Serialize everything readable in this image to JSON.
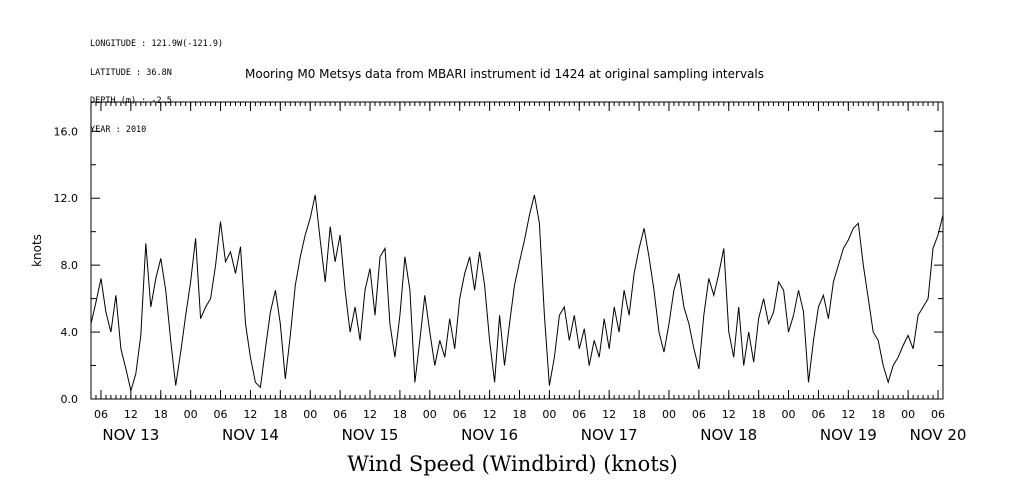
{
  "chart_data": {
    "type": "line",
    "title": "Wind Speed (Windbird) (knots)",
    "subtitle": "Mooring M0 Metsys data from MBARI instrument id 1424 at original sampling intervals",
    "header_info": [
      "LONGITUDE : 121.9W(-121.9)",
      "LATITUDE : 36.8N",
      "DEPTH (m) : -2.5",
      "YEAR : 2010"
    ],
    "ylabel": "knots",
    "xlabel": "",
    "ylim": [
      0,
      17.75
    ],
    "yticks": [
      0.0,
      4.0,
      8.0,
      12.0,
      16.0
    ],
    "ytick_labels": [
      "0.0",
      "4.0",
      "8.0",
      "12.0",
      "16.0"
    ],
    "x_start": "2010-11-13T04:00",
    "x_end": "2010-11-20T07:00",
    "xtick_hour_labels": [
      {
        "t": "2010-11-13T06:00",
        "label": "06"
      },
      {
        "t": "2010-11-13T12:00",
        "label": "12"
      },
      {
        "t": "2010-11-13T18:00",
        "label": "18"
      },
      {
        "t": "2010-11-14T00:00",
        "label": "00"
      },
      {
        "t": "2010-11-14T06:00",
        "label": "06"
      },
      {
        "t": "2010-11-14T12:00",
        "label": "12"
      },
      {
        "t": "2010-11-14T18:00",
        "label": "18"
      },
      {
        "t": "2010-11-15T00:00",
        "label": "00"
      },
      {
        "t": "2010-11-15T06:00",
        "label": "06"
      },
      {
        "t": "2010-11-15T12:00",
        "label": "12"
      },
      {
        "t": "2010-11-15T18:00",
        "label": "18"
      },
      {
        "t": "2010-11-16T00:00",
        "label": "00"
      },
      {
        "t": "2010-11-16T06:00",
        "label": "06"
      },
      {
        "t": "2010-11-16T12:00",
        "label": "12"
      },
      {
        "t": "2010-11-16T18:00",
        "label": "18"
      },
      {
        "t": "2010-11-17T00:00",
        "label": "00"
      },
      {
        "t": "2010-11-17T06:00",
        "label": "06"
      },
      {
        "t": "2010-11-17T12:00",
        "label": "12"
      },
      {
        "t": "2010-11-17T18:00",
        "label": "18"
      },
      {
        "t": "2010-11-18T00:00",
        "label": "00"
      },
      {
        "t": "2010-11-18T06:00",
        "label": "06"
      },
      {
        "t": "2010-11-18T12:00",
        "label": "12"
      },
      {
        "t": "2010-11-18T18:00",
        "label": "18"
      },
      {
        "t": "2010-11-19T00:00",
        "label": "00"
      },
      {
        "t": "2010-11-19T06:00",
        "label": "06"
      },
      {
        "t": "2010-11-19T12:00",
        "label": "12"
      },
      {
        "t": "2010-11-19T18:00",
        "label": "18"
      },
      {
        "t": "2010-11-20T00:00",
        "label": "00"
      },
      {
        "t": "2010-11-20T06:00",
        "label": "06"
      }
    ],
    "xtick_day_labels": [
      {
        "t": "2010-11-13T12:00",
        "label": "NOV 13"
      },
      {
        "t": "2010-11-14T12:00",
        "label": "NOV 14"
      },
      {
        "t": "2010-11-15T12:00",
        "label": "NOV 15"
      },
      {
        "t": "2010-11-16T12:00",
        "label": "NOV 16"
      },
      {
        "t": "2010-11-17T12:00",
        "label": "NOV 17"
      },
      {
        "t": "2010-11-18T12:00",
        "label": "NOV 18"
      },
      {
        "t": "2010-11-19T12:00",
        "label": "NOV 19"
      },
      {
        "t": "2010-11-20T06:00",
        "label": "NOV 20"
      }
    ],
    "grid": false,
    "series": [
      {
        "color": "#000000",
        "points": [
          [
            "2010-11-13T04:00",
            4.5
          ],
          [
            "2010-11-13T05:00",
            5.8
          ],
          [
            "2010-11-13T06:00",
            7.2
          ],
          [
            "2010-11-13T07:00",
            5.2
          ],
          [
            "2010-11-13T08:00",
            4.0
          ],
          [
            "2010-11-13T09:00",
            6.2
          ],
          [
            "2010-11-13T10:00",
            3.0
          ],
          [
            "2010-11-13T11:00",
            1.8
          ],
          [
            "2010-11-13T12:00",
            0.5
          ],
          [
            "2010-11-13T13:00",
            1.5
          ],
          [
            "2010-11-13T14:00",
            3.8
          ],
          [
            "2010-11-13T15:00",
            9.3
          ],
          [
            "2010-11-13T16:00",
            5.5
          ],
          [
            "2010-11-13T17:00",
            7.2
          ],
          [
            "2010-11-13T18:00",
            8.4
          ],
          [
            "2010-11-13T19:00",
            6.5
          ],
          [
            "2010-11-13T20:00",
            3.5
          ],
          [
            "2010-11-13T21:00",
            0.8
          ],
          [
            "2010-11-13T22:00",
            2.8
          ],
          [
            "2010-11-13T23:00",
            5.0
          ],
          [
            "2010-11-14T00:00",
            7.0
          ],
          [
            "2010-11-14T01:00",
            9.6
          ],
          [
            "2010-11-14T02:00",
            4.8
          ],
          [
            "2010-11-14T03:00",
            5.5
          ],
          [
            "2010-11-14T04:00",
            6.0
          ],
          [
            "2010-11-14T05:00",
            8.0
          ],
          [
            "2010-11-14T06:00",
            10.6
          ],
          [
            "2010-11-14T07:00",
            8.2
          ],
          [
            "2010-11-14T08:00",
            8.8
          ],
          [
            "2010-11-14T09:00",
            7.5
          ],
          [
            "2010-11-14T10:00",
            9.1
          ],
          [
            "2010-11-14T11:00",
            4.5
          ],
          [
            "2010-11-14T12:00",
            2.5
          ],
          [
            "2010-11-14T13:00",
            1.0
          ],
          [
            "2010-11-14T14:00",
            0.7
          ],
          [
            "2010-11-14T15:00",
            3.0
          ],
          [
            "2010-11-14T16:00",
            5.2
          ],
          [
            "2010-11-14T17:00",
            6.5
          ],
          [
            "2010-11-14T18:00",
            4.5
          ],
          [
            "2010-11-14T19:00",
            1.2
          ],
          [
            "2010-11-14T20:00",
            3.8
          ],
          [
            "2010-11-14T21:00",
            6.8
          ],
          [
            "2010-11-14T22:00",
            8.5
          ],
          [
            "2010-11-14T23:00",
            9.8
          ],
          [
            "2010-11-15T00:00",
            10.8
          ],
          [
            "2010-11-15T01:00",
            12.2
          ],
          [
            "2010-11-15T02:00",
            9.5
          ],
          [
            "2010-11-15T03:00",
            7.0
          ],
          [
            "2010-11-15T04:00",
            10.3
          ],
          [
            "2010-11-15T05:00",
            8.2
          ],
          [
            "2010-11-15T06:00",
            9.8
          ],
          [
            "2010-11-15T07:00",
            6.5
          ],
          [
            "2010-11-15T08:00",
            4.0
          ],
          [
            "2010-11-15T09:00",
            5.5
          ],
          [
            "2010-11-15T10:00",
            3.5
          ],
          [
            "2010-11-15T11:00",
            6.5
          ],
          [
            "2010-11-15T12:00",
            7.8
          ],
          [
            "2010-11-15T13:00",
            5.0
          ],
          [
            "2010-11-15T14:00",
            8.5
          ],
          [
            "2010-11-15T15:00",
            9.0
          ],
          [
            "2010-11-15T16:00",
            4.5
          ],
          [
            "2010-11-15T17:00",
            2.5
          ],
          [
            "2010-11-15T18:00",
            5.0
          ],
          [
            "2010-11-15T19:00",
            8.5
          ],
          [
            "2010-11-15T20:00",
            6.5
          ],
          [
            "2010-11-15T21:00",
            1.0
          ],
          [
            "2010-11-15T22:00",
            3.5
          ],
          [
            "2010-11-15T23:00",
            6.2
          ],
          [
            "2010-11-16T00:00",
            4.0
          ],
          [
            "2010-11-16T01:00",
            2.0
          ],
          [
            "2010-11-16T02:00",
            3.5
          ],
          [
            "2010-11-16T03:00",
            2.5
          ],
          [
            "2010-11-16T04:00",
            4.8
          ],
          [
            "2010-11-16T05:00",
            3.0
          ],
          [
            "2010-11-16T06:00",
            6.0
          ],
          [
            "2010-11-16T07:00",
            7.5
          ],
          [
            "2010-11-16T08:00",
            8.5
          ],
          [
            "2010-11-16T09:00",
            6.5
          ],
          [
            "2010-11-16T10:00",
            8.8
          ],
          [
            "2010-11-16T11:00",
            6.8
          ],
          [
            "2010-11-16T12:00",
            3.5
          ],
          [
            "2010-11-16T13:00",
            1.0
          ],
          [
            "2010-11-16T14:00",
            5.0
          ],
          [
            "2010-11-16T15:00",
            2.0
          ],
          [
            "2010-11-16T16:00",
            4.5
          ],
          [
            "2010-11-16T17:00",
            6.8
          ],
          [
            "2010-11-16T18:00",
            8.2
          ],
          [
            "2010-11-16T19:00",
            9.5
          ],
          [
            "2010-11-16T20:00",
            11.0
          ],
          [
            "2010-11-16T21:00",
            12.2
          ],
          [
            "2010-11-16T22:00",
            10.5
          ],
          [
            "2010-11-16T23:00",
            5.0
          ],
          [
            "2010-11-17T00:00",
            0.8
          ],
          [
            "2010-11-17T01:00",
            2.5
          ],
          [
            "2010-11-17T02:00",
            5.0
          ],
          [
            "2010-11-17T03:00",
            5.5
          ],
          [
            "2010-11-17T04:00",
            3.5
          ],
          [
            "2010-11-17T05:00",
            5.0
          ],
          [
            "2010-11-17T06:00",
            3.0
          ],
          [
            "2010-11-17T07:00",
            4.2
          ],
          [
            "2010-11-17T08:00",
            2.0
          ],
          [
            "2010-11-17T09:00",
            3.5
          ],
          [
            "2010-11-17T10:00",
            2.5
          ],
          [
            "2010-11-17T11:00",
            4.8
          ],
          [
            "2010-11-17T12:00",
            3.0
          ],
          [
            "2010-11-17T13:00",
            5.5
          ],
          [
            "2010-11-17T14:00",
            4.0
          ],
          [
            "2010-11-17T15:00",
            6.5
          ],
          [
            "2010-11-17T16:00",
            5.0
          ],
          [
            "2010-11-17T17:00",
            7.5
          ],
          [
            "2010-11-17T18:00",
            9.0
          ],
          [
            "2010-11-17T19:00",
            10.2
          ],
          [
            "2010-11-17T20:00",
            8.5
          ],
          [
            "2010-11-17T21:00",
            6.5
          ],
          [
            "2010-11-17T22:00",
            4.0
          ],
          [
            "2010-11-17T23:00",
            2.8
          ],
          [
            "2010-11-18T00:00",
            4.5
          ],
          [
            "2010-11-18T01:00",
            6.5
          ],
          [
            "2010-11-18T02:00",
            7.5
          ],
          [
            "2010-11-18T03:00",
            5.5
          ],
          [
            "2010-11-18T04:00",
            4.5
          ],
          [
            "2010-11-18T05:00",
            3.0
          ],
          [
            "2010-11-18T06:00",
            1.8
          ],
          [
            "2010-11-18T07:00",
            5.0
          ],
          [
            "2010-11-18T08:00",
            7.2
          ],
          [
            "2010-11-18T09:00",
            6.2
          ],
          [
            "2010-11-18T10:00",
            7.5
          ],
          [
            "2010-11-18T11:00",
            9.0
          ],
          [
            "2010-11-18T12:00",
            4.0
          ],
          [
            "2010-11-18T13:00",
            2.5
          ],
          [
            "2010-11-18T14:00",
            5.5
          ],
          [
            "2010-11-18T15:00",
            2.0
          ],
          [
            "2010-11-18T16:00",
            4.0
          ],
          [
            "2010-11-18T17:00",
            2.2
          ],
          [
            "2010-11-18T18:00",
            4.8
          ],
          [
            "2010-11-18T19:00",
            6.0
          ],
          [
            "2010-11-18T20:00",
            4.5
          ],
          [
            "2010-11-18T21:00",
            5.2
          ],
          [
            "2010-11-18T22:00",
            7.0
          ],
          [
            "2010-11-18T23:00",
            6.5
          ],
          [
            "2010-11-19T00:00",
            4.0
          ],
          [
            "2010-11-19T01:00",
            5.0
          ],
          [
            "2010-11-19T02:00",
            6.5
          ],
          [
            "2010-11-19T03:00",
            5.2
          ],
          [
            "2010-11-19T04:00",
            1.0
          ],
          [
            "2010-11-19T05:00",
            3.5
          ],
          [
            "2010-11-19T06:00",
            5.5
          ],
          [
            "2010-11-19T07:00",
            6.2
          ],
          [
            "2010-11-19T08:00",
            4.8
          ],
          [
            "2010-11-19T09:00",
            7.0
          ],
          [
            "2010-11-19T10:00",
            8.0
          ],
          [
            "2010-11-19T11:00",
            9.0
          ],
          [
            "2010-11-19T12:00",
            9.5
          ],
          [
            "2010-11-19T13:00",
            10.2
          ],
          [
            "2010-11-19T14:00",
            10.5
          ],
          [
            "2010-11-19T15:00",
            8.0
          ],
          [
            "2010-11-19T16:00",
            6.0
          ],
          [
            "2010-11-19T17:00",
            4.0
          ],
          [
            "2010-11-19T18:00",
            3.5
          ],
          [
            "2010-11-19T19:00",
            2.0
          ],
          [
            "2010-11-19T20:00",
            1.0
          ],
          [
            "2010-11-19T21:00",
            2.0
          ],
          [
            "2010-11-19T22:00",
            2.5
          ],
          [
            "2010-11-19T23:00",
            3.2
          ],
          [
            "2010-11-20T00:00",
            3.8
          ],
          [
            "2010-11-20T01:00",
            3.0
          ],
          [
            "2010-11-20T02:00",
            5.0
          ],
          [
            "2010-11-20T03:00",
            5.5
          ],
          [
            "2010-11-20T04:00",
            6.0
          ],
          [
            "2010-11-20T05:00",
            9.0
          ],
          [
            "2010-11-20T06:00",
            9.8
          ],
          [
            "2010-11-20T07:00",
            11.0
          ]
        ]
      }
    ]
  }
}
